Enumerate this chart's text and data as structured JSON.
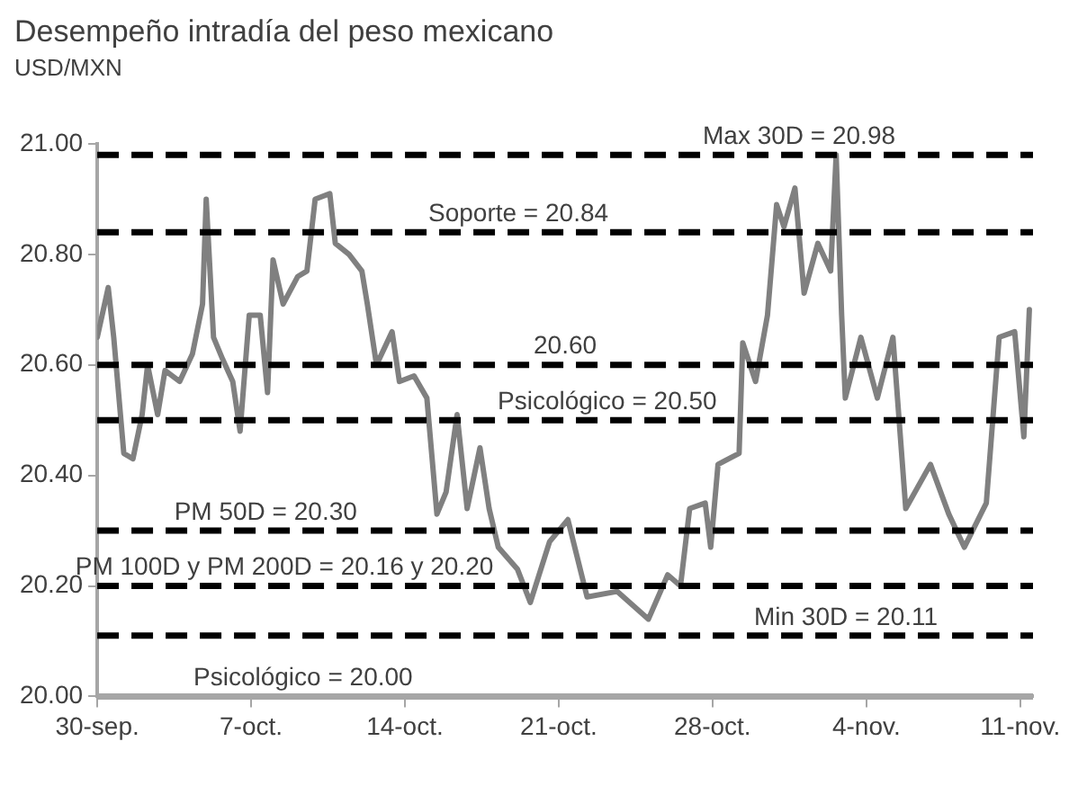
{
  "chart_data": {
    "type": "line",
    "title": "Desempeño intradía del peso mexicano",
    "subtitle": "USD/MXN",
    "x": [
      "--09-30T00:00",
      "--09-30T12:00",
      "--09-30T18:00",
      "--10-01T05:00",
      "--10-01T15:00",
      "--10-02T01:00",
      "--10-02T07:00",
      "--10-02T18:00",
      "--10-03T02:00",
      "--10-03T18:00",
      "--10-04T08:00",
      "--10-04T19:00",
      "--10-04T23:00",
      "--10-05T07:00",
      "--10-05T17:00",
      "--10-06T04:00",
      "--10-06T12:00",
      "--10-06T22:00",
      "--10-07T10:00",
      "--10-07T18:00",
      "--10-08T00:00",
      "--10-08T11:00",
      "--10-09T03:00",
      "--10-09T13:00",
      "--10-09T22:00",
      "--10-10T14:00",
      "--10-10T20:00",
      "--10-11T11:00",
      "--10-12T01:00",
      "--10-12T07:00",
      "--10-12T17:00",
      "--10-13T10:00",
      "--10-13T18:00",
      "--10-14T10:00",
      "--10-15T00:00",
      "--10-15T11:00",
      "--10-15T21:00",
      "--10-16T09:00",
      "--10-16T20:00",
      "--10-17T10:00",
      "--10-17T20:00",
      "--10-18T06:00",
      "--10-19T03:00",
      "--10-19T17:00",
      "--10-20T14:00",
      "--10-21T10:00",
      "--10-22T07:00",
      "--10-23T16:00",
      "--10-25T02:00",
      "--10-25T23:00",
      "--10-26T13:00",
      "--10-26T23:00",
      "--10-27T16:00",
      "--10-27T22:00",
      "--10-28T06:00",
      "--10-29T05:00",
      "--10-29T09:00",
      "--10-29T23:00",
      "--10-30T12:00",
      "--10-30T22:00",
      "--10-31T06:00",
      "--10-31T18:00",
      "--11-01T04:00",
      "--11-01T19:00",
      "--11-02T09:00",
      "--11-02T15:00",
      "--11-02T21:00",
      "--11-03T01:00",
      "--11-03T18:00",
      "--11-04T12:00",
      "--11-05T05:00",
      "--11-05T19:00",
      "--11-06T22:00",
      "--11-07T18:00",
      "--11-08T11:00",
      "--11-09T11:00",
      "--11-10T01:00",
      "--11-10T18:00",
      "--11-11T04:00",
      "--11-11T10:00"
    ],
    "series": [
      {
        "color": "#808080",
        "values": [
          20.65,
          20.74,
          20.65,
          20.44,
          20.43,
          20.51,
          20.6,
          20.51,
          20.59,
          20.57,
          20.62,
          20.71,
          20.9,
          20.65,
          20.61,
          20.57,
          20.48,
          20.69,
          20.69,
          20.55,
          20.79,
          20.71,
          20.76,
          20.77,
          20.9,
          20.91,
          20.82,
          20.8,
          20.77,
          20.71,
          20.6,
          20.66,
          20.57,
          20.58,
          20.54,
          20.33,
          20.37,
          20.51,
          20.34,
          20.45,
          20.34,
          20.27,
          20.23,
          20.17,
          20.28,
          20.32,
          20.18,
          20.19,
          20.14,
          20.22,
          20.2,
          20.34,
          20.35,
          20.27,
          20.42,
          20.44,
          20.64,
          20.57,
          20.69,
          20.89,
          20.85,
          20.92,
          20.73,
          20.82,
          20.77,
          20.98,
          20.69,
          20.54,
          20.65,
          20.54,
          20.65,
          20.34,
          20.42,
          20.33,
          20.27,
          20.35,
          20.65,
          20.66,
          20.47,
          20.7
        ]
      }
    ],
    "xlim": [
      "--09-30T00:00",
      "--11-11T14:00"
    ],
    "xticks": [
      {
        "value": "--09-30",
        "label": "30-sep."
      },
      {
        "value": "--10-07",
        "label": "7-oct."
      },
      {
        "value": "--10-14",
        "label": "14-oct."
      },
      {
        "value": "--10-21",
        "label": "21-oct."
      },
      {
        "value": "--10-28",
        "label": "28-oct."
      },
      {
        "value": "--11-04",
        "label": "4-nov."
      },
      {
        "value": "--11-11",
        "label": "11-nov."
      }
    ],
    "ylim": [
      20,
      21
    ],
    "yticks": [
      {
        "value": 20,
        "label": "20.00"
      },
      {
        "value": 20.2,
        "label": "20.20"
      },
      {
        "value": 20.4,
        "label": "20.40"
      },
      {
        "value": 20.6,
        "label": "20.60"
      },
      {
        "value": 20.8,
        "label": "20.80"
      },
      {
        "value": 21,
        "label": "21.00"
      }
    ],
    "ref_lines": [
      {
        "axis": "y",
        "value": 20.98,
        "label": "Max 30D = 20.98",
        "color": "#000000",
        "line_style": "dashed"
      },
      {
        "axis": "y",
        "value": 20.84,
        "label": "Soporte = 20.84",
        "color": "#000000",
        "line_style": "dashed"
      },
      {
        "axis": "y",
        "value": 20.6,
        "label": "20.60",
        "color": "#000000",
        "line_style": "dashed"
      },
      {
        "axis": "y",
        "value": 20.5,
        "label": "Psicológico = 20.50",
        "color": "#000000",
        "line_style": "dashed"
      },
      {
        "axis": "y",
        "value": 20.3,
        "label": "PM 50D = 20.30",
        "color": "#000000",
        "line_style": "dashed"
      },
      {
        "axis": "y",
        "value": 20.2,
        "label": "PM 100D y PM 200D = 20.16 y 20.20",
        "color": "#000000",
        "line_style": "dashed"
      },
      {
        "axis": "y",
        "value": 20.11,
        "label": "Min 30D = 20.11",
        "color": "#000000",
        "line_style": "dashed"
      },
      {
        "axis": "y",
        "value": 20,
        "label": "Psicológico = 20.00",
        "color": "#a6a6a6",
        "line_style": "solid"
      }
    ],
    "grid": false,
    "legend": false,
    "marker": "none",
    "line_style": "solid"
  }
}
